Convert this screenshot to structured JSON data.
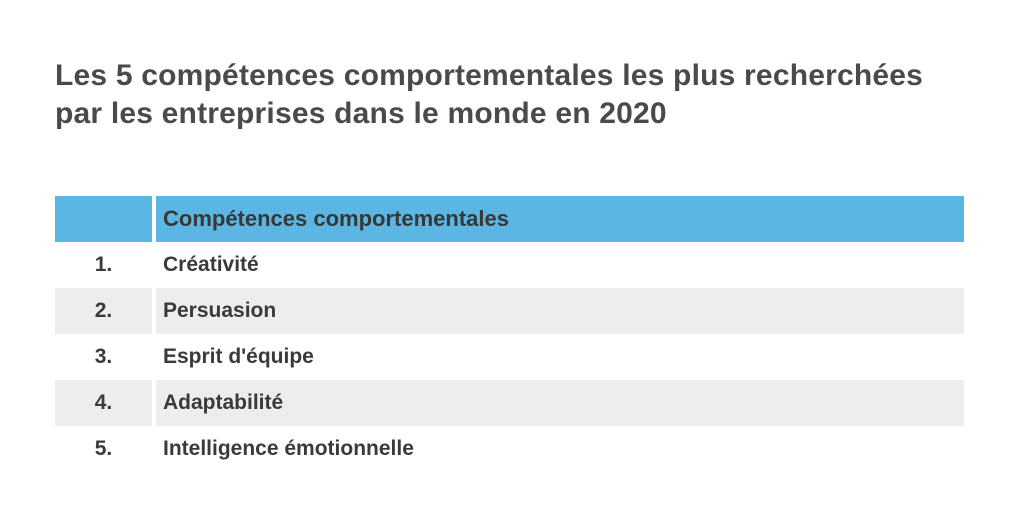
{
  "title": {
    "lines": [
      "Les 5 compétences comportementales les plus recherchées",
      "par les entreprises dans le monde en 2020"
    ]
  },
  "table": {
    "header": {
      "rank_label": "",
      "skill_label": "Compétences comportementales"
    },
    "rows": [
      {
        "rank": "1.",
        "skill": "Créativité"
      },
      {
        "rank": "2.",
        "skill": "Persuasion"
      },
      {
        "rank": "3.",
        "skill": "Esprit d'équipe"
      },
      {
        "rank": "4.",
        "skill": "Adaptabilité"
      },
      {
        "rank": "5.",
        "skill": "Intelligence émotionnelle"
      }
    ]
  },
  "colors": {
    "header_bg": "#5cb6e3",
    "row_alt_bg": "#ededed",
    "title_color": "#4a4a4a",
    "text_color": "#3a3a3a",
    "background": "#ffffff"
  },
  "chart_data": {
    "type": "table",
    "title": "Les 5 compétences comportementales les plus recherchées par les entreprises dans le monde en 2020",
    "columns": [
      "",
      "Compétences comportementales"
    ],
    "rows": [
      [
        "1.",
        "Créativité"
      ],
      [
        "2.",
        "Persuasion"
      ],
      [
        "3.",
        "Esprit d'équipe"
      ],
      [
        "4.",
        "Adaptabilité"
      ],
      [
        "5.",
        "Intelligence émotionnelle"
      ]
    ],
    "legend_position": "none",
    "grid": false
  }
}
